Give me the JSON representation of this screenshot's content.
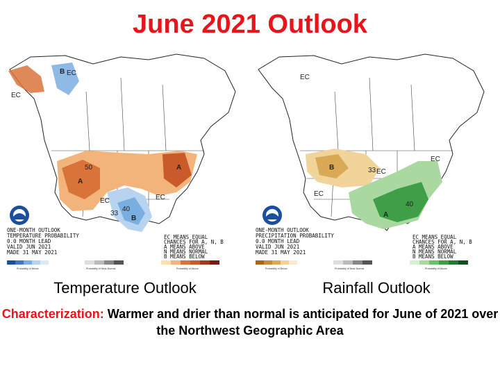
{
  "title": "June 2021 Outlook",
  "maps": {
    "temperature": {
      "caption": "Temperature Outlook",
      "legend_lines": [
        "ONE-MONTH OUTLOOK",
        "TEMPERATURE PROBABILITY",
        "0.0 MONTH LEAD",
        "VALID JUN 2021",
        "MADE 31 MAY 2021"
      ],
      "key_lines": [
        "EC MEANS EQUAL",
        "CHANCES FOR A, N, B",
        "A MEANS ABOVE",
        "N MEANS NORMAL",
        "B MEANS BELOW"
      ],
      "labels": {
        "ec1": "EC",
        "ec2": "EC",
        "ec3": "EC",
        "ec4": "EC",
        "a1": "A",
        "a2": "A",
        "b1": "B",
        "b2": "B",
        "n33": "33",
        "n40": "40",
        "n50": "50"
      },
      "scale_left": "Probability of Below",
      "scale_mid": "Probability of Near-Normal",
      "scale_right": "Probability of Above",
      "colors": {
        "above": "#d8743a",
        "above_light": "#f2b47a",
        "below": "#7aaee0",
        "below_light": "#b6d4f0"
      }
    },
    "rainfall": {
      "caption": "Rainfall Outlook",
      "legend_lines": [
        "ONE-MONTH OUTLOOK",
        "PRECIPITATION PROBABILITY",
        "0.0 MONTH LEAD",
        "VALID JUN 2021",
        "MADE 31 MAY 2021"
      ],
      "key_lines": [
        "EC MEANS EQUAL",
        "CHANCES FOR A, N, B",
        "A MEANS ABOVE",
        "N MEANS NORMAL",
        "B MEANS BELOW"
      ],
      "labels": {
        "ec1": "EC",
        "ec2": "EC",
        "ec3": "EC",
        "ec4": "EC",
        "a1": "A",
        "b1": "B",
        "n33": "33",
        "n40": "40"
      },
      "scale_left": "Probability of Below",
      "scale_mid": "Probability of Near-Normal",
      "scale_right": "Probability of Above",
      "colors": {
        "dry": "#d9aa55",
        "dry_light": "#f0d49a",
        "wet": "#3f9e47",
        "wet_light": "#a9d9a0"
      }
    }
  },
  "characterization": {
    "label": "Characterization:",
    "text": "Warmer and drier than normal is anticipated for June of 2021 over the Northwest Geographic Area"
  }
}
